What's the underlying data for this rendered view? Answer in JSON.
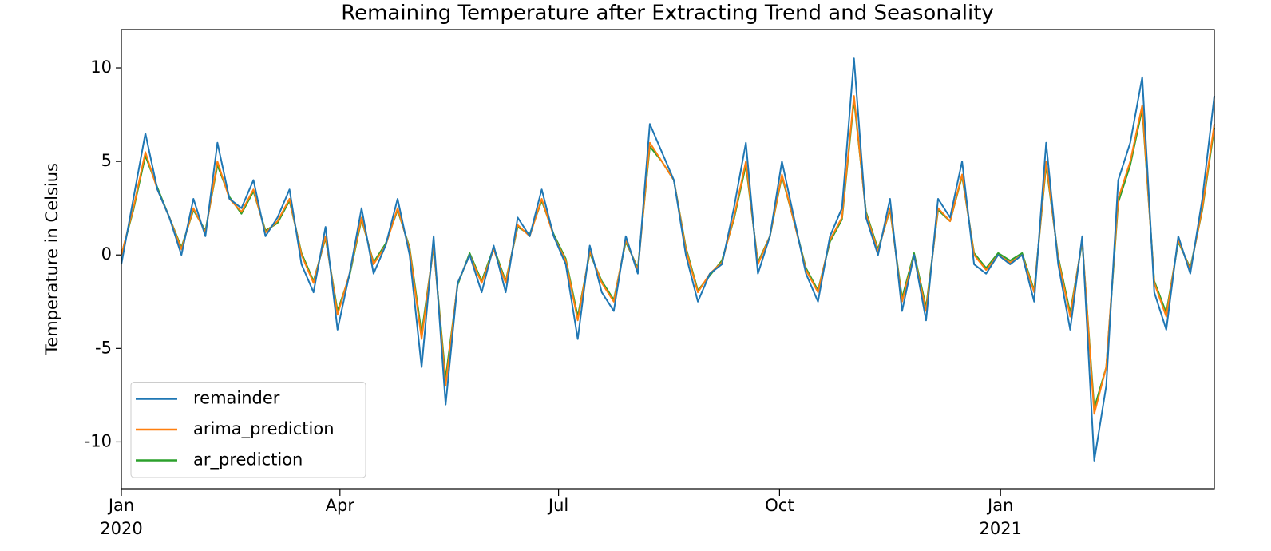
{
  "chart_data": {
    "type": "line",
    "title": "Remaining Temperature after Extracting Trend and Seasonality",
    "ylabel": "Temperature in Celsius",
    "x": [
      0,
      5,
      10,
      15,
      20,
      25,
      30,
      35,
      40,
      45,
      50,
      55,
      60,
      65,
      70,
      75,
      80,
      85,
      90,
      95,
      100,
      105,
      110,
      115,
      120,
      125,
      130,
      135,
      140,
      145,
      150,
      155,
      160,
      165,
      170,
      175,
      180,
      185,
      190,
      195,
      200,
      205,
      210,
      215,
      220,
      225,
      230,
      235,
      240,
      245,
      250,
      255,
      260,
      265,
      270,
      275,
      280,
      285,
      290,
      295,
      300,
      305,
      310,
      315,
      320,
      325,
      330,
      335,
      340,
      345,
      350,
      355,
      360,
      365,
      370,
      375,
      380,
      385,
      390,
      395,
      400,
      405,
      410,
      415,
      420,
      425,
      430,
      435,
      440,
      445,
      450,
      455
    ],
    "series": [
      {
        "name": "remainder",
        "color": "#1f77b4",
        "values": [
          -0.5,
          3,
          6.5,
          3.5,
          2,
          0,
          3,
          1,
          6,
          3,
          2.5,
          4,
          1,
          2,
          3.5,
          -0.5,
          -2,
          1.5,
          -4,
          -1,
          2.5,
          -1,
          0.5,
          3,
          0,
          -6,
          1,
          -8,
          -1.5,
          0,
          -2,
          0.5,
          -2,
          2,
          1,
          3.5,
          1,
          -0.5,
          -4.5,
          0.5,
          -2,
          -3,
          1,
          -1,
          7,
          5.5,
          4,
          0,
          -2.5,
          -1,
          -0.5,
          2.5,
          6,
          -1,
          1,
          5,
          2,
          -1,
          -2.5,
          1,
          2.5,
          10.5,
          2,
          0,
          3,
          -3,
          0,
          -3.5,
          3,
          2,
          5,
          -0.5,
          -1,
          0,
          -0.5,
          0,
          -2.5,
          6,
          -0.5,
          -4,
          1,
          -11,
          -7,
          4,
          6,
          9.5,
          -2,
          -4,
          1,
          -1,
          3,
          8.5
        ]
      },
      {
        "name": "arima_prediction",
        "color": "#ff7f0e",
        "values": [
          0,
          2.5,
          5.5,
          3.5,
          2,
          0.3,
          2.5,
          1.2,
          5,
          3,
          2.3,
          3.5,
          1.2,
          1.8,
          3,
          0,
          -1.5,
          1,
          -3.2,
          -1,
          2,
          -0.5,
          0.5,
          2.5,
          0.3,
          -4.5,
          0.5,
          -7,
          -1.5,
          0,
          -1.5,
          0.3,
          -1.5,
          1.6,
          1,
          3,
          1,
          -0.3,
          -3.5,
          0.2,
          -1.5,
          -2.5,
          0.8,
          -0.8,
          6,
          5,
          4,
          0.3,
          -2,
          -1,
          -0.4,
          2,
          5,
          -0.5,
          1,
          4.3,
          1.8,
          -0.8,
          -2,
          0.8,
          2,
          8.5,
          2.2,
          0.2,
          2.5,
          -2.5,
          0,
          -3,
          2.5,
          1.8,
          4.3,
          0,
          -0.8,
          0,
          -0.4,
          0,
          -2,
          5,
          -0.2,
          -3.3,
          0.8,
          -8.5,
          -6,
          3,
          5,
          8,
          -1.5,
          -3.3,
          0.8,
          -0.8,
          2.5,
          7
        ]
      },
      {
        "name": "ar_prediction",
        "color": "#2ca02c",
        "values": [
          0,
          2.4,
          5.3,
          3.6,
          2,
          0.4,
          2.4,
          1.3,
          4.8,
          3.1,
          2.2,
          3.4,
          1.3,
          1.7,
          2.9,
          0.1,
          -1.4,
          0.9,
          -3,
          -1.1,
          1.9,
          -0.4,
          0.6,
          2.4,
          0.4,
          -4.2,
          0.4,
          -6.6,
          -1.6,
          0.1,
          -1.4,
          0.4,
          -1.4,
          1.5,
          1.1,
          2.9,
          1.1,
          -0.2,
          -3.3,
          0.1,
          -1.4,
          -2.4,
          0.7,
          -0.7,
          5.8,
          5,
          4,
          0.4,
          -1.9,
          -1.1,
          -0.3,
          1.9,
          4.8,
          -0.4,
          1,
          4.2,
          1.8,
          -0.7,
          -1.9,
          0.7,
          1.9,
          8.3,
          2.3,
          0.3,
          2.4,
          -2.3,
          0.1,
          -2.8,
          2.4,
          1.8,
          4.2,
          0.1,
          -0.7,
          0.1,
          -0.3,
          0.1,
          -1.9,
          4.8,
          -0.1,
          -3.1,
          0.7,
          -8.2,
          -6,
          2.8,
          4.8,
          7.8,
          -1.4,
          -3.1,
          0.7,
          -0.7,
          2.4,
          6.8
        ]
      }
    ],
    "xlim": [
      0,
      455
    ],
    "xticks": [
      {
        "value": 0,
        "label": "Jan"
      },
      {
        "value": 91,
        "label": "Apr"
      },
      {
        "value": 182,
        "label": "Jul"
      },
      {
        "value": 274,
        "label": "Oct"
      },
      {
        "value": 366,
        "label": "Jan"
      }
    ],
    "xtick_sublabels": [
      {
        "value": 0,
        "label": "2020"
      },
      {
        "value": 366,
        "label": "2021"
      }
    ],
    "ylim": [
      -12.5,
      12.05
    ],
    "yticks": [
      -10,
      -5,
      0,
      5,
      10
    ],
    "grid": false,
    "legend": "lower left"
  }
}
